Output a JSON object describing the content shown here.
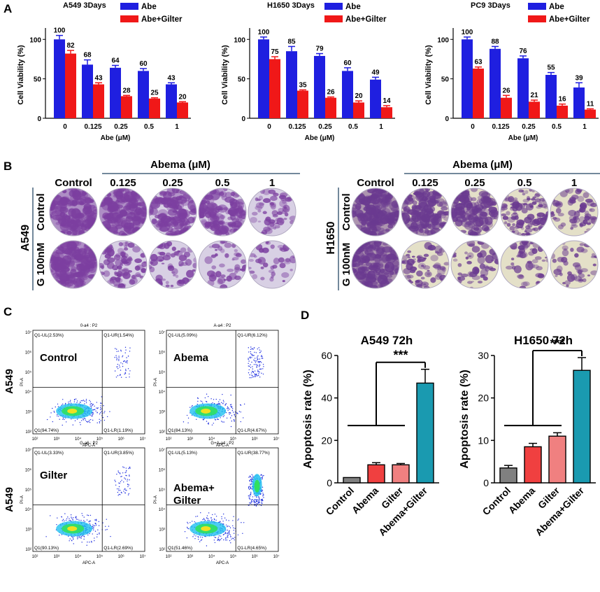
{
  "colors": {
    "blue": "#1f1fe0",
    "red": "#f01818",
    "ctrl": "#808080",
    "abema": "#f04040",
    "gilter": "#f08080",
    "combo": "#1a9ab0",
    "well_a549": "#7c3fa0",
    "well_h1650": "#6a3a90"
  },
  "panelA": {
    "label": "A",
    "legend": {
      "abe": "Abe",
      "combo": "Abe+Gilter"
    },
    "ylabel": "Cell Viability (%)",
    "xlabel": "Abe (μM)",
    "categories": [
      "0",
      "0.125",
      "0.25",
      "0.5",
      "1"
    ],
    "yticks": [
      "0",
      "50",
      "100"
    ]
  },
  "panelB": {
    "label": "B",
    "abema_header": "Abema (μM)",
    "cols": [
      "Control",
      "0.125",
      "0.25",
      "0.5",
      "1"
    ],
    "rows": [
      "Control",
      "G 100nM"
    ],
    "lines": [
      "A549",
      "H1650"
    ],
    "wells_density": [
      [
        [
          1,
          0.95,
          0.9,
          0.85,
          0.35
        ],
        [
          1,
          0.6,
          0.3,
          0.2,
          0.15
        ]
      ],
      [
        [
          1,
          0.9,
          0.85,
          0.7,
          0.35
        ],
        [
          0.95,
          0.35,
          0.25,
          0.25,
          0.2
        ]
      ]
    ]
  },
  "panelC": {
    "label": "C",
    "axis_x": "APC-A",
    "axis_y": "PI-A",
    "row_labels": [
      "A549",
      "A549"
    ],
    "xticks": [
      "10²",
      "10³",
      "10⁴",
      "10⁵",
      "10⁶",
      "10⁷"
    ],
    "yticks": [
      "10²",
      "10³",
      "10⁴",
      "10⁵",
      "10⁶",
      "10⁷"
    ],
    "plots": [
      {
        "title": "0-a4 : P2",
        "name": "Control",
        "ul": "Q1-UL(2.53%)",
        "ur": "Q1-UR(1.54%)",
        "ll": "Q1(94.74%)",
        "lr": "Q1-LR(1.19%)"
      },
      {
        "title": "A-a4 : P2",
        "name": "Abema",
        "ul": "Q1-UL(5.09%)",
        "ur": "Q1-UR(6.12%)",
        "ll": "Q1(84.13%)",
        "lr": "Q1-LR(4.67%)"
      },
      {
        "title": "G-a6 : P2",
        "name": "Gilter",
        "ul": "Q1-UL(3.33%)",
        "ur": "Q1-UR(3.85%)",
        "ll": "Q1(90.13%)",
        "lr": "Q1-LR(2.69%)"
      },
      {
        "title": "G+A-a4 : P2",
        "name": "Abema+ Gilter",
        "ul": "Q1-UL(5.13%)",
        "ur": "Q1-UR(38.77%)",
        "ll": "Q1(51.46%)",
        "lr": "Q1-LR(4.65%)"
      }
    ]
  },
  "panelD": {
    "label": "D",
    "ylabel": "Apoptosis rate (%)",
    "sig": "***",
    "categories": [
      "Control",
      "Abema",
      "Gilter",
      "Abema+Gilter"
    ]
  },
  "chart_data": [
    {
      "type": "bar",
      "title": "A549 3Days",
      "categories": [
        "0",
        "0.125",
        "0.25",
        "0.5",
        "1"
      ],
      "xlabel": "Abe (μM)",
      "ylabel": "Cell Viability (%)",
      "ylim": [
        0,
        110
      ],
      "series": [
        {
          "name": "Abe",
          "values": [
            100,
            68,
            64,
            60,
            43
          ],
          "errors": [
            5,
            6,
            3,
            3,
            2
          ]
        },
        {
          "name": "Abe+Gilter",
          "values": [
            82,
            43,
            28,
            25,
            20
          ],
          "errors": [
            4,
            2,
            1,
            1,
            1
          ]
        }
      ]
    },
    {
      "type": "bar",
      "title": "H1650 3Days",
      "categories": [
        "0",
        "0.125",
        "0.25",
        "0.5",
        "1"
      ],
      "xlabel": "Abe (μM)",
      "ylabel": "Cell Viability (%)",
      "ylim": [
        0,
        110
      ],
      "series": [
        {
          "name": "Abe",
          "values": [
            100,
            85,
            79,
            60,
            49
          ],
          "errors": [
            3,
            6,
            3,
            4,
            3
          ]
        },
        {
          "name": "Abe+Gilter",
          "values": [
            75,
            35,
            26,
            20,
            14
          ],
          "errors": [
            3,
            1,
            1,
            2,
            2
          ]
        }
      ]
    },
    {
      "type": "bar",
      "title": "PC9 3Days",
      "categories": [
        "0",
        "0.125",
        "0.25",
        "0.5",
        "1"
      ],
      "xlabel": "Abe (μM)",
      "ylabel": "Cell Viability (%)",
      "ylim": [
        0,
        110
      ],
      "series": [
        {
          "name": "Abe",
          "values": [
            100,
            88,
            76,
            55,
            39
          ],
          "errors": [
            3,
            3,
            3,
            3,
            6
          ]
        },
        {
          "name": "Abe+Gilter",
          "values": [
            63,
            26,
            21,
            16,
            11
          ],
          "errors": [
            2,
            3,
            2,
            2,
            1
          ]
        }
      ]
    },
    {
      "type": "bar",
      "title": "A549 72h",
      "categories": [
        "Control",
        "Abema",
        "Gilter",
        "Abema+Gilter"
      ],
      "ylabel": "Apoptosis rate (%)",
      "ylim": [
        0,
        60
      ],
      "yticks": [
        0,
        20,
        40,
        60
      ],
      "values": [
        2.5,
        8.5,
        8.5,
        47
      ],
      "errors": [
        0,
        1,
        0.6,
        6.5
      ]
    },
    {
      "type": "bar",
      "title": "H1650 72h",
      "categories": [
        "Control",
        "Abema",
        "Gilter",
        "Abema+Gilter"
      ],
      "ylabel": "Apoptosis rate (%)",
      "ylim": [
        0,
        30
      ],
      "yticks": [
        0,
        10,
        20,
        30
      ],
      "values": [
        3.5,
        8.5,
        11,
        26.5
      ],
      "errors": [
        0.6,
        0.8,
        0.8,
        3
      ]
    }
  ]
}
